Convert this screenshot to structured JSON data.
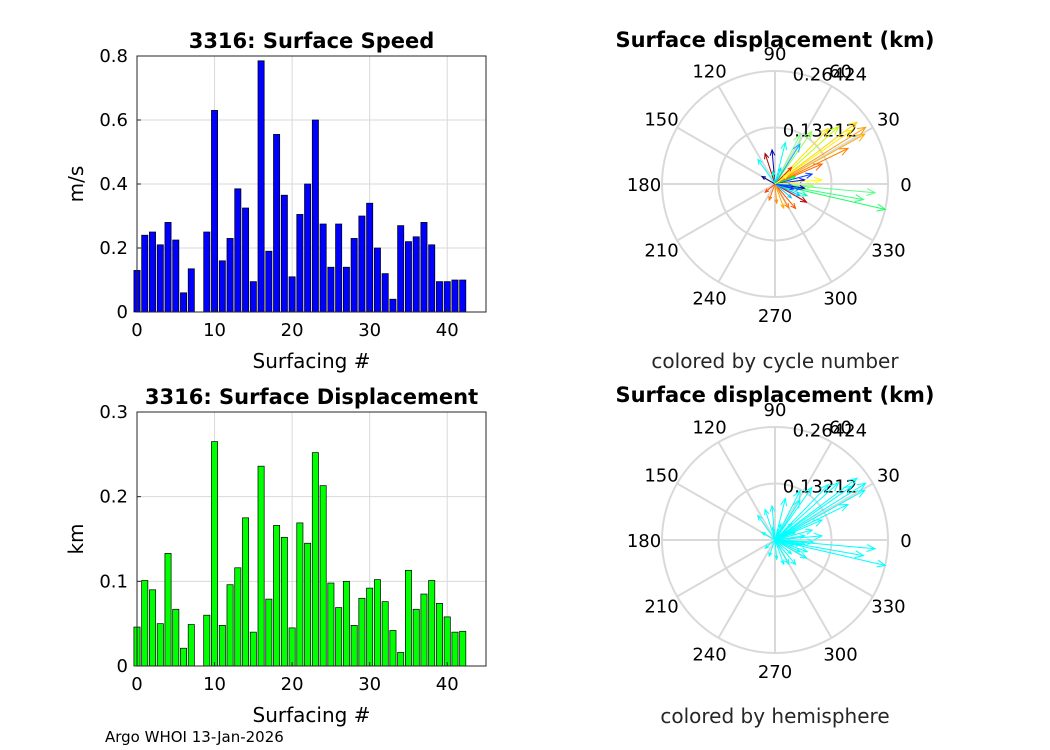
{
  "footer": "Argo WHOI 13-Jan-2026",
  "colors": {
    "speed_bars": "#0000ff",
    "disp_bars": "#00ff00",
    "hemisphere_arrows": "#00ffff",
    "grid": "#d9d9d9"
  },
  "chart_data": [
    {
      "type": "bar",
      "title": "3316: Surface Speed",
      "xlabel": "Surfacing #",
      "ylabel": "m/s",
      "xlim": [
        0,
        45
      ],
      "ylim": [
        0,
        0.8
      ],
      "xticks": [
        "0",
        "10",
        "20",
        "30",
        "40"
      ],
      "yticks": [
        "0",
        "0.2",
        "0.4",
        "0.6",
        "0.8"
      ],
      "grid": true,
      "bar_color": "#0000ff",
      "x": [
        0,
        1,
        2,
        3,
        4,
        5,
        6,
        7,
        9,
        10,
        11,
        12,
        13,
        14,
        15,
        16,
        17,
        18,
        19,
        20,
        21,
        22,
        23,
        24,
        25,
        26,
        27,
        28,
        29,
        30,
        31,
        32,
        33,
        34,
        35,
        36,
        37,
        38,
        39,
        40,
        41,
        42
      ],
      "values": [
        0.13,
        0.24,
        0.25,
        0.21,
        0.28,
        0.225,
        0.06,
        0.135,
        0.25,
        0.63,
        0.16,
        0.23,
        0.385,
        0.325,
        0.095,
        0.785,
        0.19,
        0.555,
        0.365,
        0.11,
        0.305,
        0.4,
        0.6,
        0.275,
        0.14,
        0.275,
        0.14,
        0.23,
        0.3,
        0.34,
        0.2,
        0.12,
        0.04,
        0.27,
        0.22,
        0.235,
        0.28,
        0.21,
        0.095,
        0.095,
        0.1,
        0.1
      ]
    },
    {
      "type": "bar",
      "title": "3316: Surface Displacement",
      "xlabel": "Surfacing #",
      "ylabel": "km",
      "xlim": [
        0,
        45
      ],
      "ylim": [
        0,
        0.3
      ],
      "xticks": [
        "0",
        "10",
        "20",
        "30",
        "40"
      ],
      "yticks": [
        "0",
        "0.1",
        "0.2",
        "0.3"
      ],
      "grid": true,
      "bar_color": "#00ff00",
      "x": [
        0,
        1,
        2,
        3,
        4,
        5,
        6,
        7,
        9,
        10,
        11,
        12,
        13,
        14,
        15,
        16,
        17,
        18,
        19,
        20,
        21,
        22,
        23,
        24,
        25,
        26,
        27,
        28,
        29,
        30,
        31,
        32,
        33,
        34,
        35,
        36,
        37,
        38,
        39,
        40,
        41,
        42
      ],
      "values": [
        0.046,
        0.101,
        0.09,
        0.05,
        0.133,
        0.067,
        0.021,
        0.049,
        0.06,
        0.265,
        0.048,
        0.096,
        0.116,
        0.175,
        0.04,
        0.236,
        0.079,
        0.166,
        0.152,
        0.045,
        0.169,
        0.145,
        0.252,
        0.213,
        0.098,
        0.069,
        0.1,
        0.048,
        0.08,
        0.092,
        0.102,
        0.076,
        0.042,
        0.016,
        0.113,
        0.067,
        0.085,
        0.101,
        0.074,
        0.058,
        0.04,
        0.041
      ]
    },
    {
      "type": "polar-arrows",
      "title": "Surface displacement (km)",
      "note": "colored by cycle number",
      "rmax": 0.26424,
      "r_ticks": [
        "0.13212",
        "0.26424"
      ],
      "angle_ticks": [
        "0",
        "30",
        "60",
        "90",
        "120",
        "150",
        "180",
        "210",
        "240",
        "270",
        "300",
        "330"
      ],
      "grid": true,
      "arrows": [
        {
          "r": 0.265,
          "theta": -13,
          "color": "#1fff64"
        },
        {
          "r": 0.235,
          "theta": -5,
          "color": "#5cff8a"
        },
        {
          "r": 0.21,
          "theta": -10,
          "color": "#33ff7a"
        },
        {
          "r": 0.25,
          "theta": 32,
          "color": "#ff9c00"
        },
        {
          "r": 0.24,
          "theta": 37,
          "color": "#ffd400"
        },
        {
          "r": 0.24,
          "theta": 29,
          "color": "#ffb000"
        },
        {
          "r": 0.22,
          "theta": 35,
          "color": "#fff000"
        },
        {
          "r": 0.2,
          "theta": 42,
          "color": "#c0ff00"
        },
        {
          "r": 0.19,
          "theta": 26,
          "color": "#ff8000"
        },
        {
          "r": 0.18,
          "theta": 46,
          "color": "#ffe000"
        },
        {
          "r": 0.15,
          "theta": 55,
          "color": "#8cff50"
        },
        {
          "r": 0.13,
          "theta": 63,
          "color": "#7fff7f"
        },
        {
          "r": 0.12,
          "theta": 23,
          "color": "#ff6000"
        },
        {
          "r": 0.11,
          "theta": 58,
          "color": "#00b0ff"
        },
        {
          "r": 0.1,
          "theta": 76,
          "color": "#00ffe0"
        },
        {
          "r": 0.08,
          "theta": 95,
          "color": "#0000c0"
        },
        {
          "r": 0.075,
          "theta": 108,
          "color": "#a00000"
        },
        {
          "r": 0.07,
          "theta": 125,
          "color": "#00ffff"
        },
        {
          "r": 0.09,
          "theta": 15,
          "color": "#0040ff"
        },
        {
          "r": 0.07,
          "theta": 8,
          "color": "#0000ff"
        },
        {
          "r": 0.11,
          "theta": 5,
          "color": "#ffff00"
        },
        {
          "r": 0.09,
          "theta": -3,
          "color": "#a0ff60"
        },
        {
          "r": 0.08,
          "theta": -20,
          "color": "#00ffb0"
        },
        {
          "r": 0.07,
          "theta": -8,
          "color": "#0000a0"
        },
        {
          "r": 0.06,
          "theta": -12,
          "color": "#0060ff"
        },
        {
          "r": 0.085,
          "theta": -30,
          "color": "#c00000"
        },
        {
          "r": 0.075,
          "theta": -50,
          "color": "#ff5000"
        },
        {
          "r": 0.065,
          "theta": -60,
          "color": "#ff8000"
        },
        {
          "r": 0.06,
          "theta": -70,
          "color": "#ffaa00"
        },
        {
          "r": 0.05,
          "theta": -40,
          "color": "#00d0ff"
        },
        {
          "r": 0.045,
          "theta": -85,
          "color": "#ff9000"
        },
        {
          "r": 0.04,
          "theta": -110,
          "color": "#ff7000"
        },
        {
          "r": 0.05,
          "theta": 20,
          "color": "#00ff40"
        },
        {
          "r": 0.04,
          "theta": 70,
          "color": "#00e0ff"
        },
        {
          "r": 0.035,
          "theta": 150,
          "color": "#000080"
        },
        {
          "r": 0.03,
          "theta": -140,
          "color": "#ff4000"
        },
        {
          "r": 0.065,
          "theta": -25,
          "color": "#00c0ff"
        },
        {
          "r": 0.055,
          "theta": 45,
          "color": "#ff2000"
        },
        {
          "r": 0.03,
          "theta": 100,
          "color": "#00ffc0"
        },
        {
          "r": 0.045,
          "theta": -15,
          "color": "#2020ff"
        },
        {
          "r": 0.04,
          "theta": -5,
          "color": "#0070ff"
        },
        {
          "r": 0.035,
          "theta": 35,
          "color": "#ffff40"
        }
      ]
    },
    {
      "type": "polar-arrows",
      "title": "Surface displacement (km)",
      "note": "colored by hemisphere",
      "rmax": 0.26424,
      "r_ticks": [
        "0.13212",
        "0.26424"
      ],
      "angle_ticks": [
        "0",
        "30",
        "60",
        "90",
        "120",
        "150",
        "180",
        "210",
        "240",
        "270",
        "300",
        "330"
      ],
      "grid": true,
      "arrow_color": "#00ffff",
      "arrows": [
        {
          "r": 0.265,
          "theta": -13
        },
        {
          "r": 0.235,
          "theta": -5
        },
        {
          "r": 0.21,
          "theta": -10
        },
        {
          "r": 0.25,
          "theta": 32
        },
        {
          "r": 0.24,
          "theta": 37
        },
        {
          "r": 0.24,
          "theta": 29
        },
        {
          "r": 0.22,
          "theta": 35
        },
        {
          "r": 0.2,
          "theta": 42
        },
        {
          "r": 0.19,
          "theta": 26
        },
        {
          "r": 0.18,
          "theta": 46
        },
        {
          "r": 0.15,
          "theta": 55
        },
        {
          "r": 0.13,
          "theta": 63
        },
        {
          "r": 0.12,
          "theta": 23
        },
        {
          "r": 0.11,
          "theta": 58
        },
        {
          "r": 0.1,
          "theta": 76
        },
        {
          "r": 0.08,
          "theta": 95
        },
        {
          "r": 0.075,
          "theta": 108
        },
        {
          "r": 0.07,
          "theta": 125
        },
        {
          "r": 0.09,
          "theta": 15
        },
        {
          "r": 0.07,
          "theta": 8
        },
        {
          "r": 0.11,
          "theta": 5
        },
        {
          "r": 0.09,
          "theta": -3
        },
        {
          "r": 0.08,
          "theta": -20
        },
        {
          "r": 0.07,
          "theta": -8
        },
        {
          "r": 0.06,
          "theta": -12
        },
        {
          "r": 0.085,
          "theta": -30
        },
        {
          "r": 0.075,
          "theta": -50
        },
        {
          "r": 0.065,
          "theta": -60
        },
        {
          "r": 0.06,
          "theta": -70
        },
        {
          "r": 0.05,
          "theta": -40
        },
        {
          "r": 0.045,
          "theta": -85
        },
        {
          "r": 0.04,
          "theta": -110
        },
        {
          "r": 0.05,
          "theta": 20
        },
        {
          "r": 0.04,
          "theta": 70
        },
        {
          "r": 0.035,
          "theta": 150
        },
        {
          "r": 0.03,
          "theta": -140
        },
        {
          "r": 0.065,
          "theta": -25
        },
        {
          "r": 0.055,
          "theta": 45
        },
        {
          "r": 0.03,
          "theta": 100
        },
        {
          "r": 0.045,
          "theta": -15
        },
        {
          "r": 0.04,
          "theta": -5
        },
        {
          "r": 0.035,
          "theta": 35
        }
      ]
    }
  ]
}
